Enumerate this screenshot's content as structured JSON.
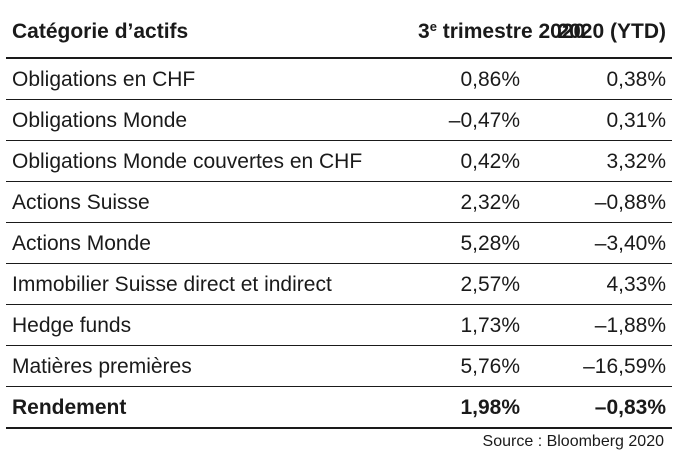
{
  "table": {
    "headers": {
      "category": "Catégorie d’actifs",
      "q3_prefix": "3",
      "q3_sup": "e",
      "q3_rest": " trimestre 2020",
      "ytd": "2020 (YTD)"
    },
    "rows": [
      {
        "category": "Obligations en CHF",
        "q3": "0,86%",
        "ytd": "0,38%"
      },
      {
        "category": "Obligations Monde",
        "q3": "–0,47%",
        "ytd": "0,31%"
      },
      {
        "category": "Obligations Monde couvertes en CHF",
        "q3": "0,42%",
        "ytd": "3,32%"
      },
      {
        "category": "Actions Suisse",
        "q3": "2,32%",
        "ytd": "–0,88%"
      },
      {
        "category": "Actions Monde",
        "q3": "5,28%",
        "ytd": "–3,40%"
      },
      {
        "category": "Immobilier Suisse direct et indirect",
        "q3": "2,57%",
        "ytd": "4,33%"
      },
      {
        "category": "Hedge funds",
        "q3": "1,73%",
        "ytd": "–1,88%"
      },
      {
        "category": "Matières premières",
        "q3": "5,76%",
        "ytd": "–16,59%"
      }
    ],
    "total": {
      "category": "Rendement",
      "q3": "1,98%",
      "ytd": "–0,83%"
    }
  },
  "source": "Source : Bloomberg 2020"
}
